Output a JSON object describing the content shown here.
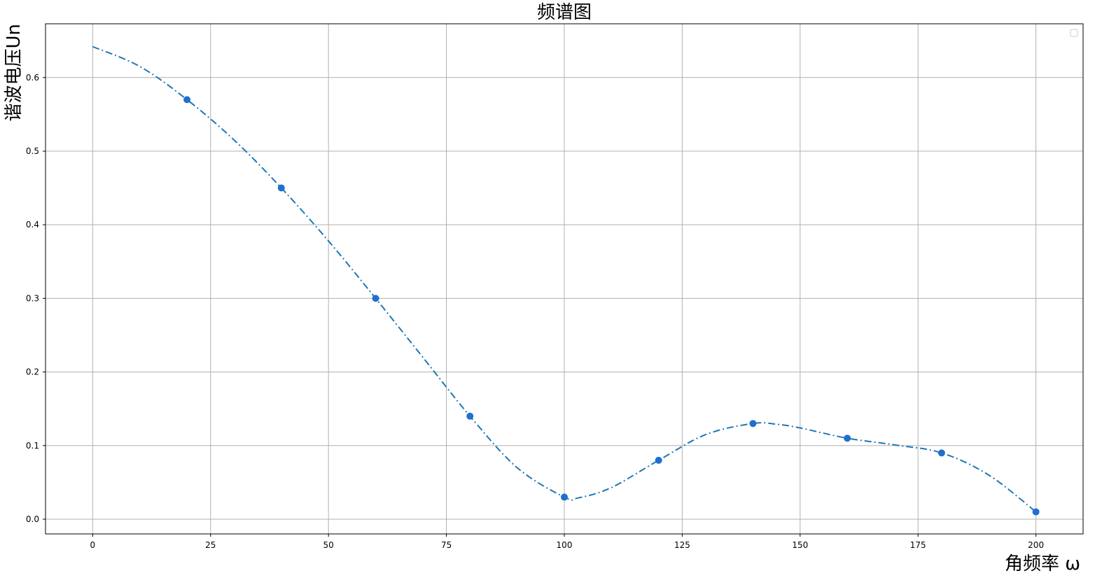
{
  "chart_data": {
    "type": "line",
    "title": "频谱图",
    "xlabel": "角频率 ω",
    "ylabel": "谐波电压Un",
    "xlim": [
      -10,
      210
    ],
    "ylim": [
      -0.02,
      0.673
    ],
    "xticks": [
      0,
      25,
      50,
      75,
      100,
      125,
      150,
      175,
      200
    ],
    "yticks": [
      0.0,
      0.1,
      0.2,
      0.3,
      0.4,
      0.5,
      0.6
    ],
    "grid": true,
    "legend": "top-right",
    "series": [
      {
        "style": "scatter",
        "color": "#1f6fcf",
        "x": [
          20,
          40,
          60,
          80,
          100,
          120,
          140,
          160,
          180,
          200
        ],
        "y": [
          0.57,
          0.45,
          0.3,
          0.14,
          0.03,
          0.08,
          0.13,
          0.11,
          0.09,
          0.01
        ]
      },
      {
        "style": "dash-dot line",
        "color": "#1f77b4",
        "x": [
          0,
          10,
          20,
          30,
          40,
          50,
          60,
          70,
          80,
          90,
          100,
          103,
          110,
          120,
          130,
          140,
          145,
          150,
          160,
          170,
          180,
          190,
          200
        ],
        "y": [
          0.642,
          0.615,
          0.57,
          0.515,
          0.45,
          0.378,
          0.3,
          0.22,
          0.14,
          0.07,
          0.03,
          0.029,
          0.043,
          0.08,
          0.115,
          0.13,
          0.129,
          0.124,
          0.11,
          0.101,
          0.09,
          0.06,
          0.01
        ]
      }
    ]
  }
}
